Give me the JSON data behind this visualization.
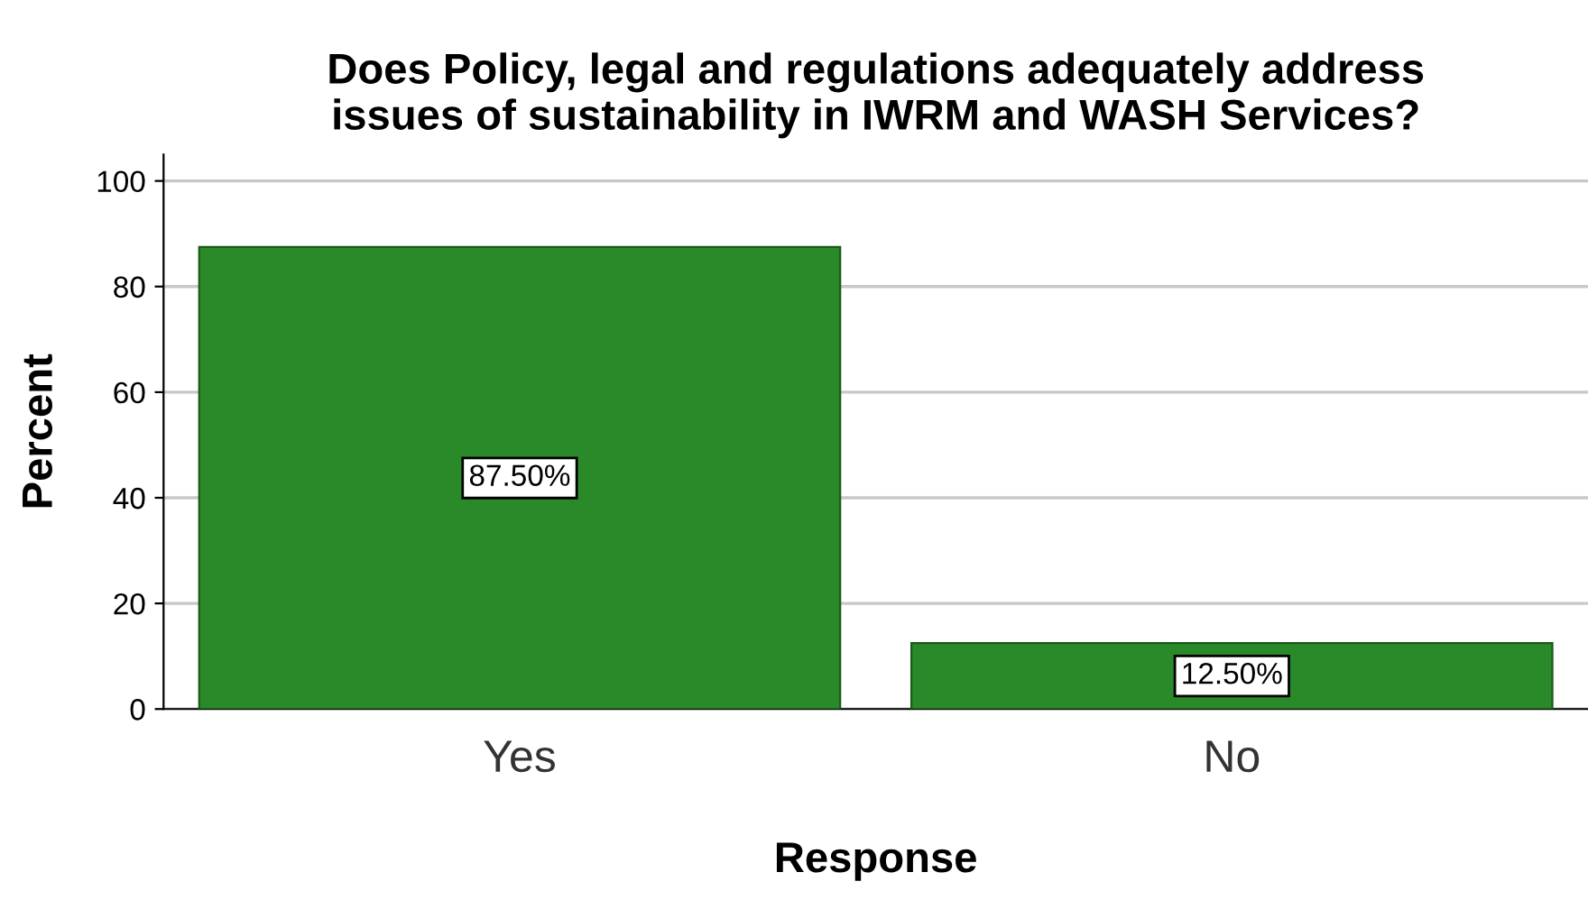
{
  "chart_data": {
    "type": "bar",
    "title": "Does Policy, legal and regulations adequately address\nissues of sustainability in IWRM and WASH Services?",
    "xlabel": "Response",
    "ylabel": "Percent",
    "categories": [
      "Yes",
      "No"
    ],
    "values": [
      87.5,
      12.5
    ],
    "color": "#2a8a2a",
    "value_labels": [
      "87.50%",
      "12.50%"
    ],
    "ylim": [
      0,
      105
    ],
    "yticks": [
      0,
      20,
      40,
      60,
      80,
      100
    ],
    "grid": "y"
  }
}
